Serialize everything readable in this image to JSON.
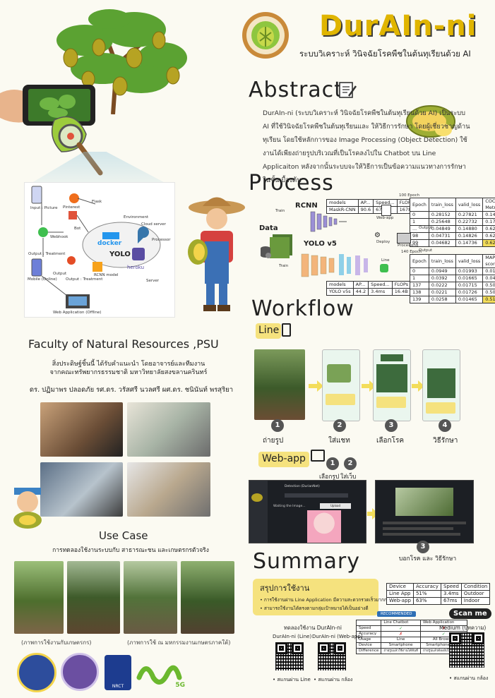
{
  "header": {
    "title": "DurAIn-ni",
    "subtitle": "ระบบวิเคราะห์  วินิจฉัยโรคพืชในต้นทุเรียนด้วย AI"
  },
  "abstract": {
    "heading": "Abstract",
    "text": "DurAIn-ni (ระบบวิเคราะห์  วินิจฉัยโรคพืชในต้นทุเรียนด้วย AI)  เป็นระบบ AI ที่ใช้วินิจฉัยโรคพืชในต้นทุเรียนและ ให้วิธีการรักษา โดยผู้เชี่ยวชาญด้านทุเรียน โดยใช้หลักการของ Image Processing (Object Detection)  ใช้งานได้เพียงถ่ายรูปบริเวณที่เป็นโรคลงไปใน Chatbot บน Line Applicaiton หลังจากนั้นระบบจะให้วิธีการเป็นข้อความแนวทางการรักษาในขั้นเบื้องต้น"
  },
  "process": {
    "heading": "Process",
    "labels": {
      "rcnn": "RCNN",
      "data": "Data",
      "yolo": "YOLO v5",
      "train1": "Train",
      "train2": "Train",
      "webapp": "Web-app",
      "deploy": "Deploy",
      "processing": "Processing",
      "output1": "Output",
      "output2": "Output",
      "line": "Line",
      "epoch100": "100 Epoch",
      "epoch140": "140 Epoch"
    },
    "model_table1": {
      "headers": [
        "models",
        "AP...",
        "Speed...",
        "FLOPs"
      ],
      "rows": [
        [
          "MaskR-CNN",
          "90.6",
          "67ms",
          "1678"
        ]
      ]
    },
    "model_table2": {
      "headers": [
        "models",
        "AP...",
        "Speed...",
        "FLOPs"
      ],
      "rows": [
        [
          "YOLO v5s",
          "44.2",
          "3.4ms",
          "16.4B"
        ]
      ]
    },
    "epoch_table1": {
      "headers": [
        "Epoch",
        "train_loss",
        "valid_loss",
        "COCO Metric"
      ],
      "rows": [
        [
          "0",
          "0.28152",
          "0.27821",
          "0.147654"
        ],
        [
          "1",
          "0.25648",
          "0.22732",
          "0.172353"
        ],
        [
          "...",
          "0.04849",
          "0.14880",
          "0.624826"
        ],
        [
          "98",
          "0.04731",
          "0.14826",
          "0.626043"
        ],
        [
          "99",
          "0.04682",
          "0.14736",
          "0.625209"
        ]
      ]
    },
    "epoch_table2": {
      "headers": [
        "Epoch",
        "train_loss",
        "valid_loss",
        "MAP score"
      ],
      "rows": [
        [
          "0",
          "0.0949",
          "0.01993",
          "0.01630"
        ],
        [
          "1",
          "0.0392",
          "0.01665",
          "0.04810"
        ],
        [
          "137",
          "0.0222",
          "0.01715",
          "0.50041"
        ],
        [
          "138",
          "0.0221",
          "0.01726",
          "0.50700"
        ],
        [
          "139",
          "0.0258",
          "0.01465",
          "0.51540"
        ]
      ]
    }
  },
  "diagram": {
    "labels": [
      "Input : Picture",
      "Pinterest",
      "Flask",
      "Environment",
      "Bot",
      "Webhook",
      "Cloud server",
      "Processor",
      "Output : Treatment",
      "Output : Treatment",
      "docker",
      "YOLO",
      "heroku",
      "Mobile (Online)",
      "Output",
      "Web Application (Offline)",
      "Server",
      "RCNN model"
    ]
  },
  "workflow": {
    "heading": "Workflow",
    "line_heading": "Line",
    "steps": [
      {
        "num": "1",
        "label": "ถ่ายรูป"
      },
      {
        "num": "2",
        "label": "ใส่แชท"
      },
      {
        "num": "3",
        "label": "เลือกโรค"
      },
      {
        "num": "4",
        "label": "วิธีรักษา"
      }
    ],
    "webapp_heading": "Web-app",
    "webapp_steps": [
      {
        "num": "1",
        "label": "เลือกรูป"
      },
      {
        "num": "2",
        "label": "ใส่เว็บ"
      },
      {
        "num": "3",
        "label": "บอกโรค และ วิธีรักษา"
      }
    ],
    "web_screen": {
      "title": "Detection (DurianNet)",
      "text": "Waiting the Image...",
      "upload": "Upload"
    }
  },
  "faculty": {
    "heading": "Faculty of Natural Resources ,PSU",
    "line1": "สิ่งประดิษฐ์ชิ้นนี้ ได้รับคำแนะนำ โดยอาจารย์และทีมงาน",
    "line2": "จากคณะทรัพยากรธรรมชาติ มหาวิทยาลัยสงขลานครินทร์",
    "advisors": "ดร. ปฏิมาพร ปลอดภัย    รศ.ดร. วรัสศรี นวลศรี    ผศ.ดร. ชนินันท์ พรสุริยา"
  },
  "use_case": {
    "heading": "Use Case",
    "subheading": "การทดลองใช้งานระบบกับ สาธารณะชน และเกษตรกรตัวจริง",
    "caption1": "(ภาพการใช้งานกับเกษตรกร)",
    "caption2": "(ภาพการใช้ ณ มหกรรมงานเกษตรภาคใต้)"
  },
  "summary": {
    "heading": "Summary",
    "subheading": "สรุปการใช้งาน",
    "bullets": [
      "การใช้งานผ่าน Line Application มีความสะดวกรวดเร็วมากกว่า",
      "สามารถใช้งานได้ตรงตามกลุ่มเป้าหมายได้เป็นอย่างดี"
    ],
    "device_table": {
      "headers": [
        "Device",
        "Accuracy",
        "Speed",
        "Condition"
      ],
      "rows": [
        [
          "Line App",
          "51%",
          "3.4ms",
          "Outdoor"
        ],
        [
          "Web-app",
          "63%",
          "67ms",
          "Indoor"
        ]
      ]
    },
    "recommend_badge": "RECOMMENDED",
    "compare_table": {
      "headers": [
        "",
        "Line Chatbot",
        "Web Application"
      ],
      "rows": [
        [
          "Speed",
          "✓",
          "✗"
        ],
        [
          "Accuracy",
          "✗",
          "✓"
        ],
        [
          "Usage",
          "Line",
          "All Browser"
        ],
        [
          "Device",
          "Smartphone",
          "Smartphone or PC"
        ],
        [
          "Difference",
          "ถ่ายรูปแล้วใช้งานได้ทันที",
          "ถ่ายรูปแล้วต้องอัปโหลดบนเว็บ"
        ]
      ]
    },
    "try_label": "ทดลองใช้งาน DurAIn-ni",
    "qr_line_label": "DurAIn-ni (Line)",
    "qr_web_label": "DurAIn-ni (Web-app)",
    "qr_line_caption": "• สแกนผ่าน Line",
    "qr_web_caption": "• สแกนผ่าน กล้อง",
    "scan_me": "Scan me",
    "medium": "Medium (บทความ)",
    "medium_caption": "• สแกนผ่าน กล้อง"
  },
  "logos": {
    "nrct": "NRCT",
    "tag": "5G"
  },
  "colors": {
    "title": "#e0b500",
    "accent": "#f3dd5a",
    "green": "#7cbf3a",
    "dark": "#222222"
  }
}
